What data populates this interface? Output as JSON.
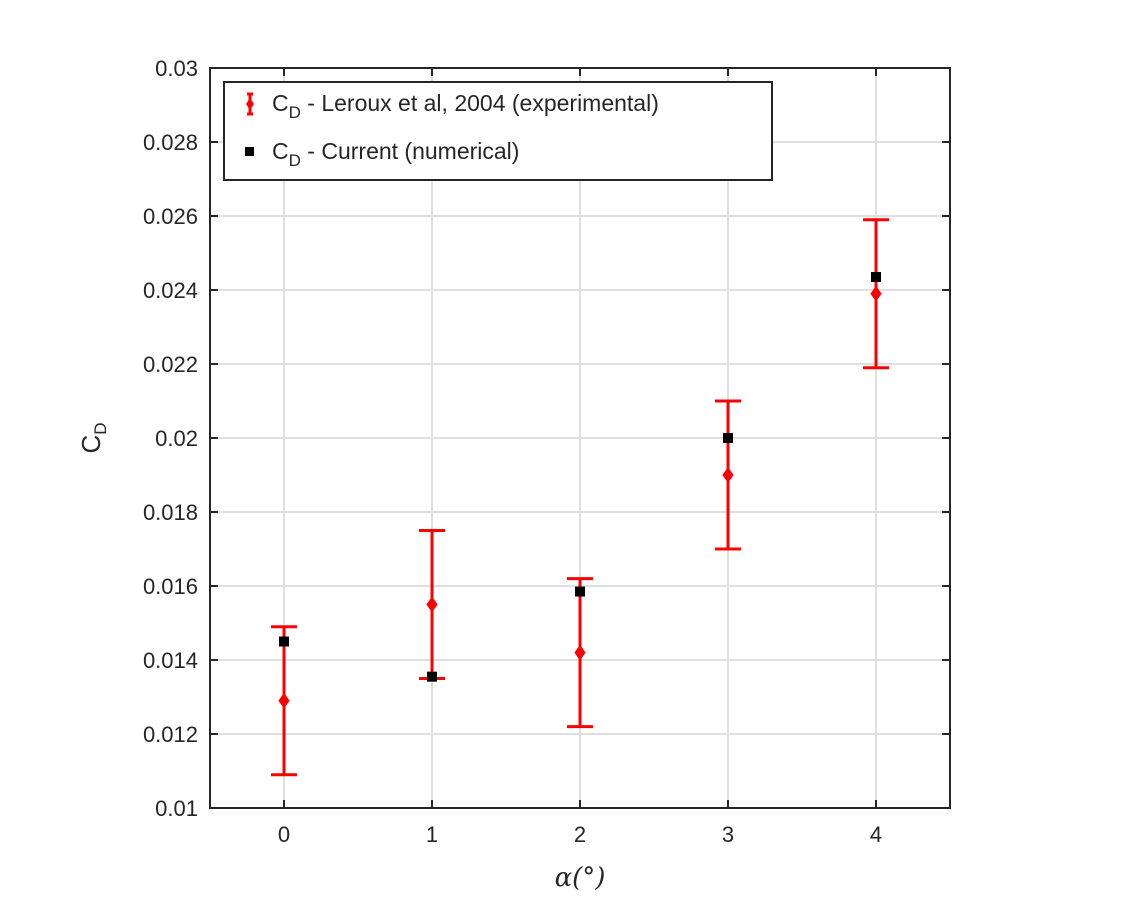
{
  "chart_data": {
    "type": "scatter",
    "x": [
      0,
      1,
      2,
      3,
      4
    ],
    "xticks": [
      "0",
      "1",
      "2",
      "3",
      "4"
    ],
    "yticks": [
      "0.01",
      "0.012",
      "0.014",
      "0.016",
      "0.018",
      "0.02",
      "0.022",
      "0.024",
      "0.026",
      "0.028",
      "0.03"
    ],
    "xlim": [
      -0.5,
      4.5
    ],
    "ylim": [
      0.01,
      0.03
    ],
    "xlabel": "α(°)",
    "ylabel": {
      "main": "C",
      "sub": "D"
    },
    "grid": true,
    "legend_position": "top-left",
    "series": [
      {
        "name": {
          "main": "C",
          "sub": "D",
          "rest": " - Leroux et al, 2004 (experimental)"
        },
        "marker": "diamond",
        "color": "#ff0000",
        "values": [
          0.0129,
          0.0155,
          0.0142,
          0.019,
          0.0239
        ],
        "error": [
          0.002,
          0.002,
          0.002,
          0.002,
          0.002
        ]
      },
      {
        "name": {
          "main": "C",
          "sub": "D",
          "rest": " - Current (numerical)"
        },
        "marker": "square",
        "color": "#000000",
        "values": [
          0.0145,
          0.01355,
          0.01585,
          0.02,
          0.02435
        ]
      }
    ]
  }
}
